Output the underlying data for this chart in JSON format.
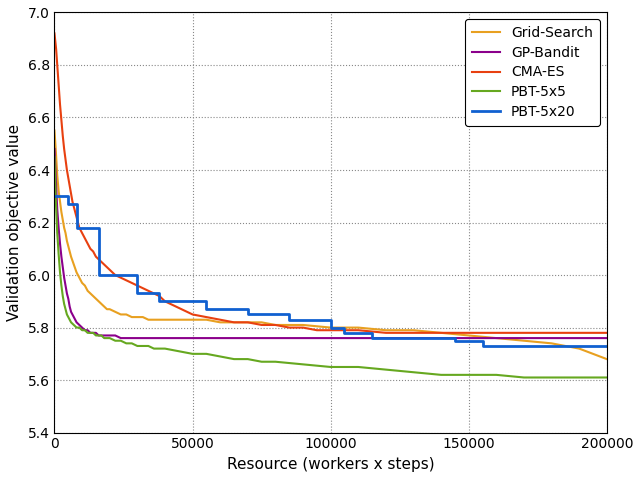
{
  "xlabel": "Resource (workers x steps)",
  "ylabel": "Validation objective value",
  "xlim": [
    0,
    200000
  ],
  "ylim": [
    5.4,
    7.0
  ],
  "yticks": [
    5.4,
    5.6,
    5.8,
    6.0,
    6.2,
    6.4,
    6.6,
    6.8,
    7.0
  ],
  "xticks": [
    0,
    50000,
    100000,
    150000,
    200000
  ],
  "legend_loc": "upper right",
  "series": [
    {
      "label": "Grid-Search",
      "color": "#E8A020",
      "lw": 1.5,
      "x": [
        0,
        500,
        1000,
        1500,
        2000,
        2500,
        3000,
        3500,
        4000,
        4500,
        5000,
        5500,
        6000,
        7000,
        8000,
        9000,
        10000,
        11000,
        12000,
        13000,
        14000,
        15000,
        16000,
        17000,
        18000,
        19000,
        20000,
        22000,
        24000,
        26000,
        28000,
        30000,
        32000,
        34000,
        36000,
        38000,
        40000,
        45000,
        50000,
        55000,
        60000,
        65000,
        70000,
        75000,
        80000,
        90000,
        100000,
        110000,
        120000,
        130000,
        140000,
        150000,
        160000,
        170000,
        180000,
        190000,
        200000
      ],
      "y": [
        6.55,
        6.47,
        6.38,
        6.32,
        6.28,
        6.24,
        6.21,
        6.18,
        6.16,
        6.13,
        6.11,
        6.09,
        6.07,
        6.04,
        6.01,
        5.99,
        5.97,
        5.96,
        5.94,
        5.93,
        5.92,
        5.91,
        5.9,
        5.89,
        5.88,
        5.87,
        5.87,
        5.86,
        5.85,
        5.85,
        5.84,
        5.84,
        5.84,
        5.83,
        5.83,
        5.83,
        5.83,
        5.83,
        5.83,
        5.83,
        5.82,
        5.82,
        5.82,
        5.82,
        5.81,
        5.81,
        5.8,
        5.8,
        5.79,
        5.79,
        5.78,
        5.77,
        5.76,
        5.75,
        5.74,
        5.72,
        5.68
      ]
    },
    {
      "label": "GP-Bandit",
      "color": "#8B008B",
      "lw": 1.5,
      "x": [
        0,
        500,
        1000,
        1500,
        2000,
        2500,
        3000,
        3500,
        4000,
        4500,
        5000,
        5500,
        6000,
        7000,
        8000,
        9000,
        10000,
        11000,
        12000,
        13000,
        14000,
        15000,
        16000,
        17000,
        18000,
        19000,
        20000,
        22000,
        24000,
        26000,
        28000,
        30000,
        35000,
        40000,
        45000,
        50000,
        60000,
        70000,
        80000,
        90000,
        100000,
        120000,
        150000,
        200000
      ],
      "y": [
        6.48,
        6.36,
        6.25,
        6.18,
        6.12,
        6.07,
        6.03,
        5.99,
        5.96,
        5.93,
        5.91,
        5.88,
        5.86,
        5.84,
        5.82,
        5.81,
        5.8,
        5.79,
        5.79,
        5.78,
        5.78,
        5.78,
        5.77,
        5.77,
        5.77,
        5.77,
        5.77,
        5.77,
        5.76,
        5.76,
        5.76,
        5.76,
        5.76,
        5.76,
        5.76,
        5.76,
        5.76,
        5.76,
        5.76,
        5.76,
        5.76,
        5.76,
        5.76,
        5.76
      ]
    },
    {
      "label": "CMA-ES",
      "color": "#E84010",
      "lw": 1.5,
      "x": [
        0,
        200,
        400,
        600,
        800,
        1000,
        1200,
        1400,
        1600,
        1800,
        2000,
        2500,
        3000,
        3500,
        4000,
        4500,
        5000,
        5500,
        6000,
        6500,
        7000,
        7500,
        8000,
        8500,
        9000,
        9500,
        10000,
        11000,
        12000,
        13000,
        14000,
        15000,
        16000,
        17000,
        18000,
        19000,
        20000,
        22000,
        24000,
        26000,
        28000,
        30000,
        32000,
        34000,
        36000,
        38000,
        40000,
        42000,
        44000,
        46000,
        48000,
        50000,
        55000,
        60000,
        65000,
        70000,
        75000,
        80000,
        85000,
        90000,
        95000,
        100000,
        110000,
        120000,
        130000,
        140000,
        150000,
        160000,
        170000,
        180000,
        190000,
        200000
      ],
      "y": [
        6.92,
        6.9,
        6.88,
        6.86,
        6.83,
        6.8,
        6.77,
        6.74,
        6.71,
        6.68,
        6.65,
        6.59,
        6.53,
        6.48,
        6.44,
        6.4,
        6.37,
        6.34,
        6.31,
        6.28,
        6.26,
        6.24,
        6.22,
        6.2,
        6.18,
        6.17,
        6.16,
        6.14,
        6.12,
        6.1,
        6.09,
        6.07,
        6.06,
        6.05,
        6.04,
        6.03,
        6.02,
        6.0,
        5.99,
        5.98,
        5.97,
        5.96,
        5.95,
        5.94,
        5.93,
        5.92,
        5.9,
        5.89,
        5.88,
        5.87,
        5.86,
        5.85,
        5.84,
        5.83,
        5.82,
        5.82,
        5.81,
        5.81,
        5.8,
        5.8,
        5.79,
        5.79,
        5.79,
        5.78,
        5.78,
        5.78,
        5.78,
        5.78,
        5.78,
        5.78,
        5.78,
        5.78
      ]
    },
    {
      "label": "PBT-5x5",
      "color": "#66A820",
      "lw": 1.5,
      "x": [
        0,
        500,
        1000,
        1500,
        2000,
        2500,
        3000,
        3500,
        4000,
        4500,
        5000,
        5500,
        6000,
        7000,
        8000,
        9000,
        10000,
        11000,
        12000,
        13000,
        14000,
        15000,
        16000,
        17000,
        18000,
        19000,
        20000,
        22000,
        24000,
        26000,
        28000,
        30000,
        32000,
        34000,
        36000,
        38000,
        40000,
        45000,
        50000,
        55000,
        60000,
        65000,
        70000,
        75000,
        80000,
        90000,
        100000,
        110000,
        120000,
        130000,
        140000,
        150000,
        160000,
        170000,
        180000,
        190000,
        200000
      ],
      "y": [
        6.45,
        6.28,
        6.16,
        6.08,
        6.01,
        5.96,
        5.92,
        5.89,
        5.87,
        5.85,
        5.84,
        5.83,
        5.82,
        5.81,
        5.8,
        5.8,
        5.79,
        5.79,
        5.78,
        5.78,
        5.78,
        5.77,
        5.77,
        5.77,
        5.76,
        5.76,
        5.76,
        5.75,
        5.75,
        5.74,
        5.74,
        5.73,
        5.73,
        5.73,
        5.72,
        5.72,
        5.72,
        5.71,
        5.7,
        5.7,
        5.69,
        5.68,
        5.68,
        5.67,
        5.67,
        5.66,
        5.65,
        5.65,
        5.64,
        5.63,
        5.62,
        5.62,
        5.62,
        5.61,
        5.61,
        5.61,
        5.61
      ]
    },
    {
      "label": "PBT-5x20",
      "color": "#1060D0",
      "lw": 2.0,
      "step_x": [
        0,
        5000,
        5000,
        8000,
        8000,
        16000,
        16000,
        30000,
        30000,
        38000,
        38000,
        55000,
        55000,
        70000,
        70000,
        85000,
        85000,
        100000,
        100000,
        105000,
        105000,
        115000,
        115000,
        145000,
        145000,
        155000,
        155000,
        200000
      ],
      "step_y": [
        6.3,
        6.3,
        6.27,
        6.27,
        6.18,
        6.18,
        6.0,
        6.0,
        5.93,
        5.93,
        5.9,
        5.9,
        5.87,
        5.87,
        5.85,
        5.85,
        5.83,
        5.83,
        5.8,
        5.8,
        5.78,
        5.78,
        5.76,
        5.76,
        5.75,
        5.75,
        5.73,
        5.73
      ]
    }
  ]
}
